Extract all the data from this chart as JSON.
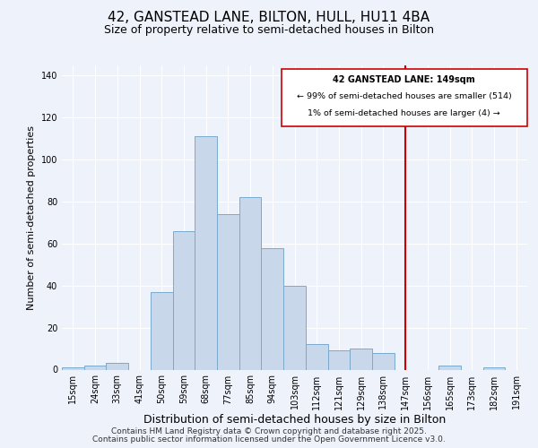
{
  "title": "42, GANSTEAD LANE, BILTON, HULL, HU11 4BA",
  "subtitle": "Size of property relative to semi-detached houses in Bilton",
  "xlabel": "Distribution of semi-detached houses by size in Bilton",
  "ylabel": "Number of semi-detached properties",
  "bin_labels": [
    "15sqm",
    "24sqm",
    "33sqm",
    "41sqm",
    "50sqm",
    "59sqm",
    "68sqm",
    "77sqm",
    "85sqm",
    "94sqm",
    "103sqm",
    "112sqm",
    "121sqm",
    "129sqm",
    "138sqm",
    "147sqm",
    "156sqm",
    "165sqm",
    "173sqm",
    "182sqm",
    "191sqm"
  ],
  "bar_values": [
    1,
    2,
    3,
    0,
    37,
    66,
    111,
    74,
    82,
    58,
    40,
    12,
    9,
    10,
    8,
    0,
    0,
    2,
    0,
    1,
    0
  ],
  "bar_color": "#c8d8ea",
  "bar_edge_color": "#7aaacc",
  "vline_x": 15,
  "vline_color": "#cc0000",
  "ylim": [
    0,
    145
  ],
  "annotation_title": "42 GANSTEAD LANE: 149sqm",
  "annotation_line1": "← 99% of semi-detached houses are smaller (514)",
  "annotation_line2": "1% of semi-detached houses are larger (4) →",
  "annotation_box_color": "#ffffff",
  "annotation_box_edge": "#cc0000",
  "footer1": "Contains HM Land Registry data © Crown copyright and database right 2025.",
  "footer2": "Contains public sector information licensed under the Open Government Licence v3.0.",
  "background_color": "#eef2fb",
  "title_fontsize": 11,
  "subtitle_fontsize": 9,
  "xlabel_fontsize": 9,
  "ylabel_fontsize": 8,
  "tick_fontsize": 7,
  "footer_fontsize": 6.5
}
